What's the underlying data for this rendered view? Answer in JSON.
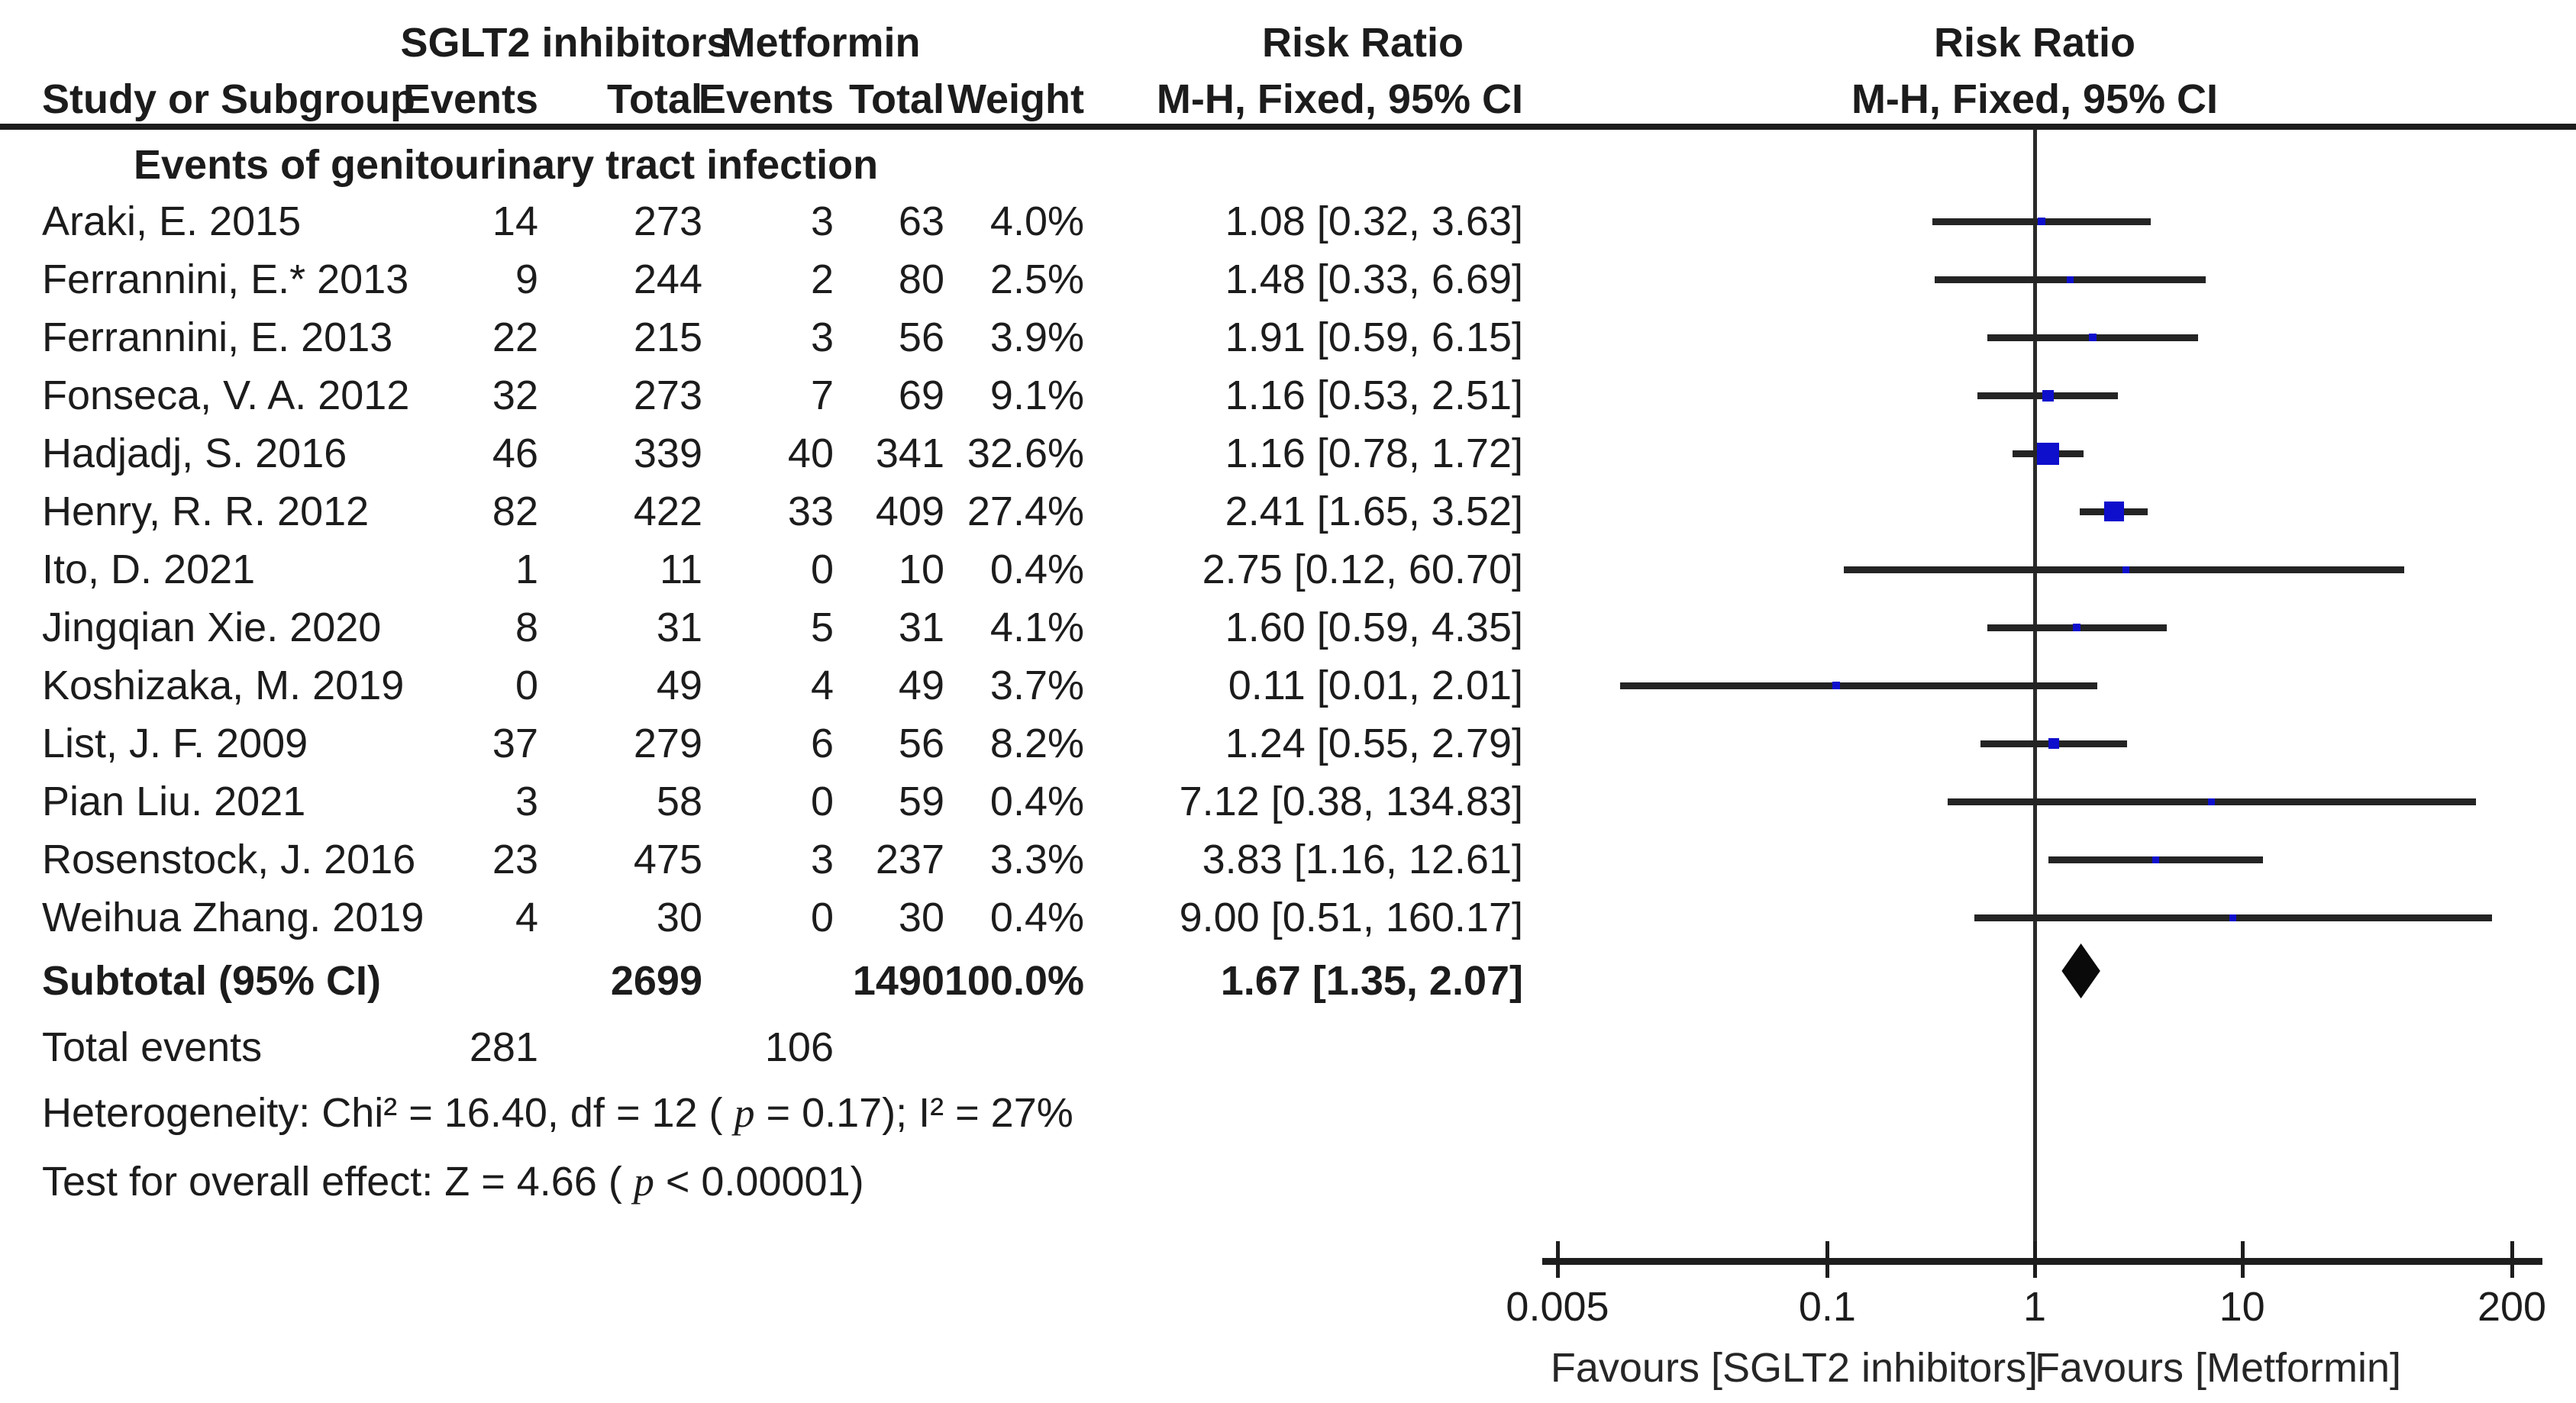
{
  "header": {
    "group1": "SGLT2 inhibitors",
    "group2": "Metformin",
    "risk_ratio_col_title": "Risk Ratio",
    "risk_ratio_col_sub": "M-H, Fixed, 95% CI",
    "plot_title": "Risk Ratio",
    "plot_sub": "M-H, Fixed, 95% CI",
    "study_col": "Study or Subgroup",
    "events_col": "Events",
    "total_col": "Total",
    "weight_col": "Weight"
  },
  "subgroup_title": "Events of genitourinary tract infection",
  "table": {
    "rows": [
      {
        "study": "Araki, E. 2015",
        "e1": "14",
        "t1": "273",
        "e2": "3",
        "t2": "63",
        "weight": "4.0%",
        "rr_text": "1.08 [0.32, 3.63]"
      },
      {
        "study": "Ferrannini, E.* 2013",
        "e1": "9",
        "t1": "244",
        "e2": "2",
        "t2": "80",
        "weight": "2.5%",
        "rr_text": "1.48 [0.33, 6.69]"
      },
      {
        "study": "Ferrannini, E. 2013",
        "e1": "22",
        "t1": "215",
        "e2": "3",
        "t2": "56",
        "weight": "3.9%",
        "rr_text": "1.91 [0.59, 6.15]"
      },
      {
        "study": "Fonseca, V. A. 2012",
        "e1": "32",
        "t1": "273",
        "e2": "7",
        "t2": "69",
        "weight": "9.1%",
        "rr_text": "1.16 [0.53, 2.51]"
      },
      {
        "study": "Hadjadj, S. 2016",
        "e1": "46",
        "t1": "339",
        "e2": "40",
        "t2": "341",
        "weight": "32.6%",
        "rr_text": "1.16 [0.78, 1.72]"
      },
      {
        "study": "Henry, R. R. 2012",
        "e1": "82",
        "t1": "422",
        "e2": "33",
        "t2": "409",
        "weight": "27.4%",
        "rr_text": "2.41 [1.65, 3.52]"
      },
      {
        "study": "Ito, D. 2021",
        "e1": "1",
        "t1": "11",
        "e2": "0",
        "t2": "10",
        "weight": "0.4%",
        "rr_text": "2.75 [0.12, 60.70]"
      },
      {
        "study": "Jingqian Xie. 2020",
        "e1": "8",
        "t1": "31",
        "e2": "5",
        "t2": "31",
        "weight": "4.1%",
        "rr_text": "1.60 [0.59, 4.35]"
      },
      {
        "study": "Koshizaka, M. 2019",
        "e1": "0",
        "t1": "49",
        "e2": "4",
        "t2": "49",
        "weight": "3.7%",
        "rr_text": "0.11 [0.01, 2.01]"
      },
      {
        "study": "List, J. F. 2009",
        "e1": "37",
        "t1": "279",
        "e2": "6",
        "t2": "56",
        "weight": "8.2%",
        "rr_text": "1.24 [0.55, 2.79]"
      },
      {
        "study": "Pian Liu. 2021",
        "e1": "3",
        "t1": "58",
        "e2": "0",
        "t2": "59",
        "weight": "0.4%",
        "rr_text": "7.12 [0.38, 134.83]"
      },
      {
        "study": "Rosenstock, J. 2016",
        "e1": "23",
        "t1": "475",
        "e2": "3",
        "t2": "237",
        "weight": "3.3%",
        "rr_text": "3.83 [1.16, 12.61]"
      },
      {
        "study": "Weihua Zhang. 2019",
        "e1": "4",
        "t1": "30",
        "e2": "0",
        "t2": "30",
        "weight": "0.4%",
        "rr_text": "9.00 [0.51, 160.17]"
      }
    ],
    "subtotal": {
      "label": "Subtotal (95% CI)",
      "t1": "2699",
      "t2": "1490",
      "weight": "100.0%",
      "rr_text": "1.67 [1.35, 2.07]"
    },
    "total_events": {
      "label": "Total events",
      "e1": "281",
      "e2": "106"
    },
    "heterogeneity": {
      "pre": "Heterogeneity: Chi² = 16.40, df = 12 ( ",
      "p": "p",
      "post": " = 0.17); I² = 27%"
    },
    "overall_effect": {
      "pre": "Test for overall effect: Z = 4.66 ( ",
      "p": "p",
      "post": " < 0.00001)"
    }
  },
  "chart_data": {
    "type": "forest",
    "title": "Risk Ratio",
    "effect_measure": "M-H, Fixed, 95% CI",
    "x_scale": "log",
    "x_range": [
      0.005,
      200
    ],
    "x_ticks": [
      0.005,
      0.1,
      1,
      10,
      200
    ],
    "x_tick_labels": [
      "0.005",
      "0.1",
      "1",
      "10",
      "200"
    ],
    "null_line": 1,
    "studies": [
      {
        "name": "Araki, E. 2015",
        "rr": 1.08,
        "low": 0.32,
        "high": 3.63,
        "weight_pct": 4.0
      },
      {
        "name": "Ferrannini, E.* 2013",
        "rr": 1.48,
        "low": 0.33,
        "high": 6.69,
        "weight_pct": 2.5
      },
      {
        "name": "Ferrannini, E. 2013",
        "rr": 1.91,
        "low": 0.59,
        "high": 6.15,
        "weight_pct": 3.9
      },
      {
        "name": "Fonseca, V. A. 2012",
        "rr": 1.16,
        "low": 0.53,
        "high": 2.51,
        "weight_pct": 9.1
      },
      {
        "name": "Hadjadj, S. 2016",
        "rr": 1.16,
        "low": 0.78,
        "high": 1.72,
        "weight_pct": 32.6
      },
      {
        "name": "Henry, R. R. 2012",
        "rr": 2.41,
        "low": 1.65,
        "high": 3.52,
        "weight_pct": 27.4
      },
      {
        "name": "Ito, D. 2021",
        "rr": 2.75,
        "low": 0.12,
        "high": 60.7,
        "weight_pct": 0.4
      },
      {
        "name": "Jingqian Xie. 2020",
        "rr": 1.6,
        "low": 0.59,
        "high": 4.35,
        "weight_pct": 4.1
      },
      {
        "name": "Koshizaka, M. 2019",
        "rr": 0.11,
        "low": 0.01,
        "high": 2.01,
        "weight_pct": 3.7
      },
      {
        "name": "List, J. F. 2009",
        "rr": 1.24,
        "low": 0.55,
        "high": 2.79,
        "weight_pct": 8.2
      },
      {
        "name": "Pian Liu. 2021",
        "rr": 7.12,
        "low": 0.38,
        "high": 134.83,
        "weight_pct": 0.4
      },
      {
        "name": "Rosenstock, J. 2016",
        "rr": 3.83,
        "low": 1.16,
        "high": 12.61,
        "weight_pct": 3.3
      },
      {
        "name": "Weihua Zhang. 2019",
        "rr": 9.0,
        "low": 0.51,
        "high": 160.17,
        "weight_pct": 0.4
      }
    ],
    "subtotal_diamond": {
      "label": "Subtotal (95% CI)",
      "rr": 1.67,
      "low": 1.35,
      "high": 2.07
    },
    "favours_left": "Favours [SGLT2 inhibitors]",
    "favours_right": "Favours [Metformin]",
    "marker_color": "#0e0ecd",
    "ci_color": "#242424",
    "diamond_color": "#0a0a0a",
    "grid": false,
    "legend_position": "none"
  }
}
